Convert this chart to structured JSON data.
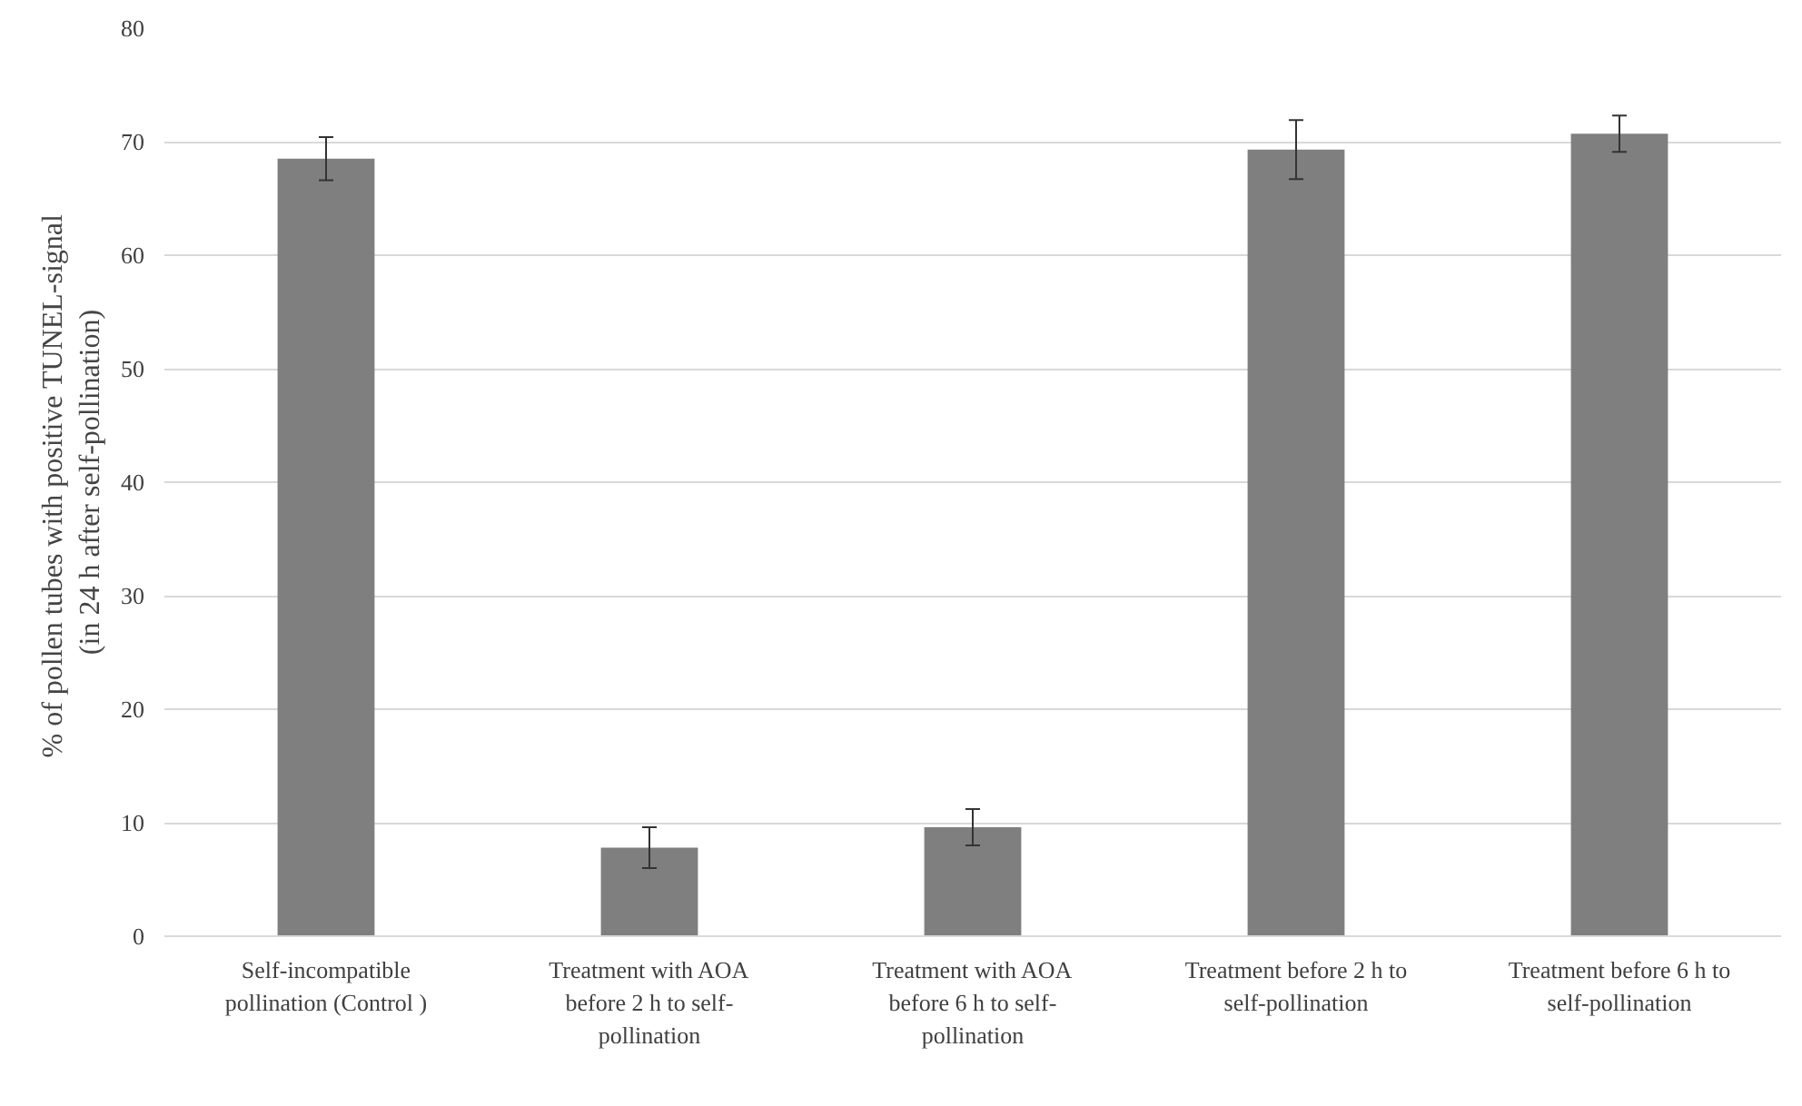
{
  "chart_data": {
    "type": "bar",
    "ylabel": "% of pollen tubes with positive  TUNEL-signal (in 24 h after self-pollination)",
    "categories": [
      "Self-incompatible pollination (Control )",
      "Treatment with AOA before 2 h to self-pollination",
      "Treatment with AOA before 6 h to self-pollination",
      "Treatment before 2 h to self-pollination",
      "Treatment before 6 h to self-pollination"
    ],
    "values": [
      68.5,
      7.8,
      9.6,
      69.3,
      70.7
    ],
    "errors": [
      1.9,
      1.8,
      1.6,
      2.6,
      1.6
    ],
    "color": "#7f7f7f",
    "ylim": [
      0,
      80
    ],
    "yticks": [
      0,
      10,
      20,
      30,
      40,
      50,
      60,
      70,
      80
    ],
    "grid": "y"
  }
}
